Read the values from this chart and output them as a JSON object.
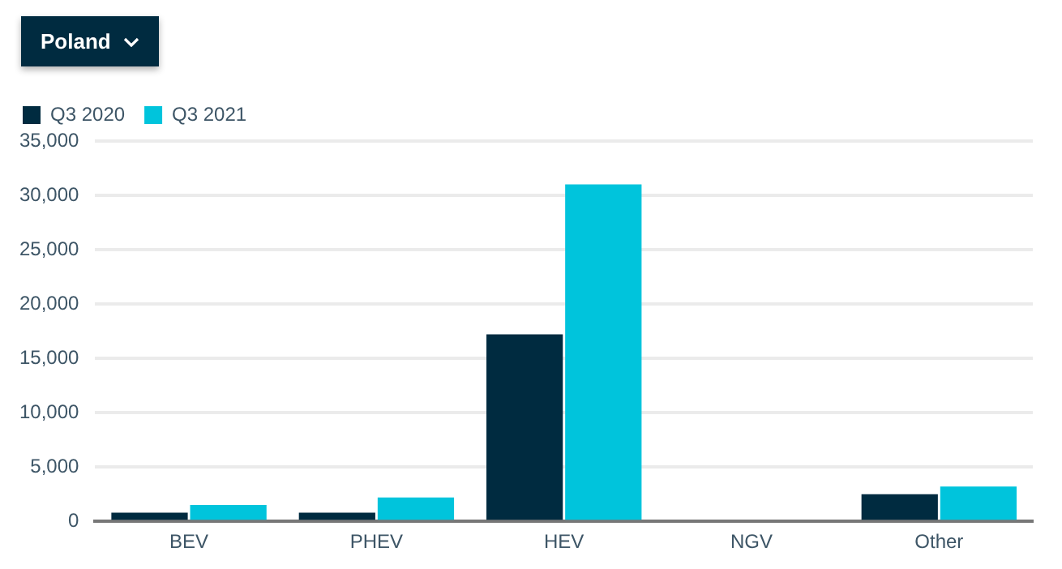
{
  "chart_data": {
    "type": "bar",
    "annotations": [
      "Poland"
    ],
    "categories": [
      "BEV",
      "PHEV",
      "HEV",
      "NGV",
      "Other"
    ],
    "series": [
      {
        "name": "Q3 2020",
        "color": "#002b40",
        "values": [
          800,
          800,
          17200,
          0,
          2500
        ]
      },
      {
        "name": "Q3 2021",
        "color": "#00c4dc",
        "values": [
          1500,
          2200,
          31000,
          0,
          3200
        ]
      }
    ],
    "ylim": [
      0,
      35000
    ],
    "yticks": [
      0,
      {
        "value": 5000,
        "label": "5,000"
      },
      {
        "value": 10000,
        "label": "10,000"
      },
      {
        "value": 15000,
        "label": "15,000"
      },
      {
        "value": 20000,
        "label": "20,000"
      },
      {
        "value": 25000,
        "label": "25,000"
      },
      {
        "value": 30000,
        "label": "30,000"
      },
      {
        "value": 35000,
        "label": "35,000"
      }
    ],
    "grid": "y",
    "legend": "top left"
  }
}
